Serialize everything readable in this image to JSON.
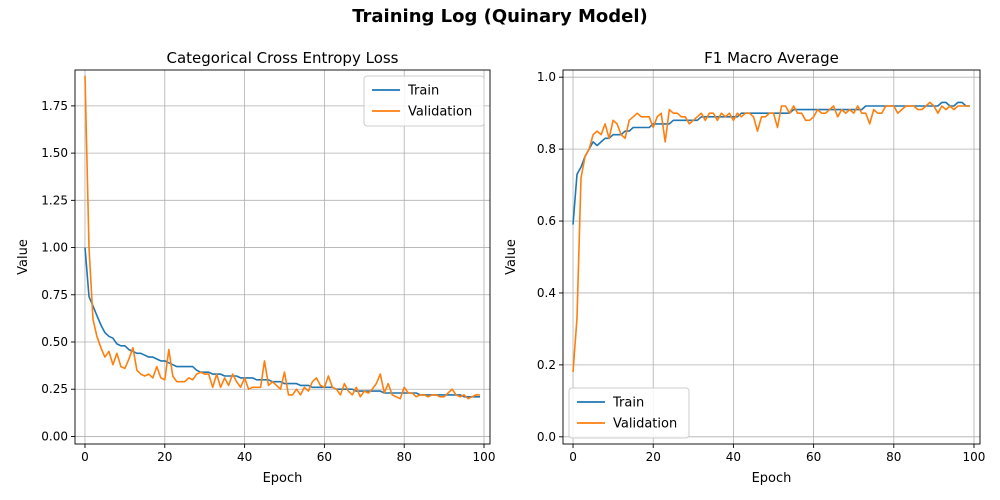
{
  "figure": {
    "suptitle": "Training Log (Quinary Model)"
  },
  "colors": {
    "train": "#1f77b4",
    "validation": "#ff7f0e",
    "grid": "#b0b0b0"
  },
  "chart_data": [
    {
      "type": "line",
      "title": "Categorical Cross Entropy Loss",
      "xlabel": "Epoch",
      "ylabel": "Value",
      "xlim": [
        -2.5,
        101.5
      ],
      "ylim": [
        -0.04,
        1.94
      ],
      "xticks": [
        0,
        20,
        40,
        60,
        80,
        100
      ],
      "xtick_labels": [
        "0",
        "20",
        "40",
        "60",
        "80",
        "100"
      ],
      "yticks": [
        0.0,
        0.25,
        0.5,
        0.75,
        1.0,
        1.25,
        1.5,
        1.75
      ],
      "ytick_labels": [
        "0.00",
        "0.25",
        "0.50",
        "0.75",
        "1.00",
        "1.25",
        "1.50",
        "1.75"
      ],
      "grid": true,
      "legend": "upper right",
      "series": [
        {
          "name": "Train",
          "color": "#1f77b4",
          "values": [
            1.0,
            0.74,
            0.69,
            0.64,
            0.59,
            0.55,
            0.53,
            0.52,
            0.49,
            0.48,
            0.48,
            0.46,
            0.45,
            0.44,
            0.44,
            0.43,
            0.42,
            0.42,
            0.41,
            0.4,
            0.4,
            0.39,
            0.38,
            0.37,
            0.37,
            0.37,
            0.37,
            0.37,
            0.35,
            0.34,
            0.34,
            0.34,
            0.33,
            0.33,
            0.33,
            0.32,
            0.32,
            0.32,
            0.32,
            0.31,
            0.31,
            0.31,
            0.31,
            0.3,
            0.3,
            0.3,
            0.3,
            0.29,
            0.29,
            0.29,
            0.28,
            0.28,
            0.28,
            0.28,
            0.27,
            0.27,
            0.27,
            0.26,
            0.26,
            0.26,
            0.26,
            0.26,
            0.26,
            0.25,
            0.25,
            0.25,
            0.25,
            0.25,
            0.24,
            0.24,
            0.24,
            0.24,
            0.24,
            0.24,
            0.24,
            0.23,
            0.23,
            0.23,
            0.23,
            0.23,
            0.23,
            0.23,
            0.23,
            0.23,
            0.22,
            0.22,
            0.22,
            0.22,
            0.22,
            0.22,
            0.22,
            0.22,
            0.22,
            0.22,
            0.22,
            0.21,
            0.21,
            0.21,
            0.21,
            0.21
          ]
        },
        {
          "name": "Validation",
          "color": "#ff7f0e",
          "values": [
            1.91,
            1.0,
            0.62,
            0.53,
            0.47,
            0.42,
            0.45,
            0.38,
            0.44,
            0.37,
            0.36,
            0.41,
            0.47,
            0.35,
            0.33,
            0.32,
            0.33,
            0.31,
            0.37,
            0.31,
            0.3,
            0.46,
            0.32,
            0.29,
            0.29,
            0.29,
            0.31,
            0.3,
            0.33,
            0.34,
            0.33,
            0.33,
            0.26,
            0.33,
            0.26,
            0.31,
            0.27,
            0.33,
            0.29,
            0.26,
            0.31,
            0.25,
            0.26,
            0.26,
            0.26,
            0.4,
            0.27,
            0.29,
            0.27,
            0.25,
            0.34,
            0.22,
            0.22,
            0.25,
            0.22,
            0.26,
            0.24,
            0.29,
            0.31,
            0.27,
            0.26,
            0.32,
            0.26,
            0.25,
            0.22,
            0.28,
            0.24,
            0.22,
            0.26,
            0.21,
            0.24,
            0.23,
            0.25,
            0.28,
            0.33,
            0.23,
            0.28,
            0.22,
            0.21,
            0.2,
            0.26,
            0.23,
            0.23,
            0.21,
            0.22,
            0.22,
            0.21,
            0.22,
            0.22,
            0.21,
            0.21,
            0.23,
            0.25,
            0.22,
            0.21,
            0.22,
            0.2,
            0.21,
            0.22,
            0.22
          ]
        }
      ]
    },
    {
      "type": "line",
      "title": "F1 Macro Average",
      "xlabel": "Epoch",
      "ylabel": "Value",
      "xlim": [
        -2.5,
        101.5
      ],
      "ylim": [
        -0.02,
        1.02
      ],
      "xticks": [
        0,
        20,
        40,
        60,
        80,
        100
      ],
      "xtick_labels": [
        "0",
        "20",
        "40",
        "60",
        "80",
        "100"
      ],
      "yticks": [
        0.0,
        0.2,
        0.4,
        0.6,
        0.8,
        1.0
      ],
      "ytick_labels": [
        "0.0",
        "0.2",
        "0.4",
        "0.6",
        "0.8",
        "1.0"
      ],
      "grid": true,
      "legend": "lower left",
      "series": [
        {
          "name": "Train",
          "color": "#1f77b4",
          "values": [
            0.59,
            0.73,
            0.75,
            0.78,
            0.8,
            0.82,
            0.81,
            0.82,
            0.83,
            0.83,
            0.84,
            0.84,
            0.84,
            0.85,
            0.85,
            0.86,
            0.86,
            0.86,
            0.86,
            0.86,
            0.87,
            0.87,
            0.87,
            0.87,
            0.87,
            0.88,
            0.88,
            0.88,
            0.88,
            0.88,
            0.88,
            0.88,
            0.89,
            0.89,
            0.89,
            0.89,
            0.89,
            0.89,
            0.89,
            0.89,
            0.89,
            0.89,
            0.9,
            0.9,
            0.9,
            0.9,
            0.9,
            0.9,
            0.9,
            0.9,
            0.9,
            0.9,
            0.9,
            0.9,
            0.9,
            0.91,
            0.91,
            0.91,
            0.91,
            0.91,
            0.91,
            0.91,
            0.91,
            0.91,
            0.91,
            0.91,
            0.91,
            0.91,
            0.91,
            0.91,
            0.91,
            0.91,
            0.91,
            0.92,
            0.92,
            0.92,
            0.92,
            0.92,
            0.92,
            0.92,
            0.92,
            0.92,
            0.92,
            0.92,
            0.92,
            0.92,
            0.92,
            0.92,
            0.92,
            0.92,
            0.92,
            0.92,
            0.93,
            0.93,
            0.92,
            0.92,
            0.93,
            0.93,
            0.92,
            0.92
          ]
        },
        {
          "name": "Validation",
          "color": "#ff7f0e",
          "values": [
            0.18,
            0.33,
            0.72,
            0.78,
            0.8,
            0.84,
            0.85,
            0.84,
            0.87,
            0.83,
            0.88,
            0.87,
            0.84,
            0.83,
            0.88,
            0.89,
            0.9,
            0.89,
            0.89,
            0.89,
            0.86,
            0.89,
            0.9,
            0.82,
            0.91,
            0.9,
            0.9,
            0.89,
            0.89,
            0.87,
            0.88,
            0.89,
            0.9,
            0.88,
            0.9,
            0.9,
            0.88,
            0.9,
            0.89,
            0.9,
            0.88,
            0.9,
            0.89,
            0.9,
            0.9,
            0.89,
            0.85,
            0.89,
            0.89,
            0.9,
            0.9,
            0.86,
            0.92,
            0.92,
            0.9,
            0.92,
            0.9,
            0.9,
            0.88,
            0.88,
            0.89,
            0.91,
            0.9,
            0.9,
            0.91,
            0.92,
            0.89,
            0.91,
            0.9,
            0.91,
            0.9,
            0.92,
            0.9,
            0.9,
            0.87,
            0.91,
            0.9,
            0.9,
            0.92,
            0.92,
            0.92,
            0.9,
            0.91,
            0.92,
            0.92,
            0.92,
            0.91,
            0.91,
            0.92,
            0.93,
            0.92,
            0.9,
            0.92,
            0.91,
            0.92,
            0.91,
            0.92,
            0.92,
            0.92,
            0.92
          ]
        }
      ]
    }
  ]
}
